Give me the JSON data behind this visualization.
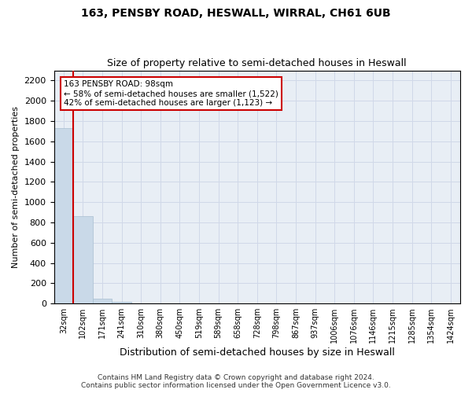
{
  "title1": "163, PENSBY ROAD, HESWALL, WIRRAL, CH61 6UB",
  "title2": "Size of property relative to semi-detached houses in Heswall",
  "xlabel": "Distribution of semi-detached houses by size in Heswall",
  "ylabel": "Number of semi-detached properties",
  "footer1": "Contains HM Land Registry data © Crown copyright and database right 2024.",
  "footer2": "Contains public sector information licensed under the Open Government Licence v3.0.",
  "annotation_title": "163 PENSBY ROAD: 98sqm",
  "annotation_line1": "← 58% of semi-detached houses are smaller (1,522)",
  "annotation_line2": "42% of semi-detached houses are larger (1,123) →",
  "bar_color": "#c9d9e8",
  "bar_edge_color": "#a8bfd0",
  "vline_color": "#cc0000",
  "annotation_box_edge": "#cc0000",
  "categories": [
    "32sqm",
    "102sqm",
    "171sqm",
    "241sqm",
    "310sqm",
    "380sqm",
    "450sqm",
    "519sqm",
    "589sqm",
    "658sqm",
    "728sqm",
    "798sqm",
    "867sqm",
    "937sqm",
    "1006sqm",
    "1076sqm",
    "1146sqm",
    "1215sqm",
    "1285sqm",
    "1354sqm",
    "1424sqm"
  ],
  "values": [
    1730,
    865,
    45,
    20,
    0,
    0,
    0,
    0,
    0,
    0,
    0,
    0,
    0,
    0,
    0,
    0,
    0,
    0,
    0,
    0,
    0
  ],
  "ylim": [
    0,
    2300
  ],
  "yticks": [
    0,
    200,
    400,
    600,
    800,
    1000,
    1200,
    1400,
    1600,
    1800,
    2000,
    2200
  ],
  "grid_color": "#d0d8e8",
  "bg_color": "#e8eef5",
  "vline_x": 1.5
}
